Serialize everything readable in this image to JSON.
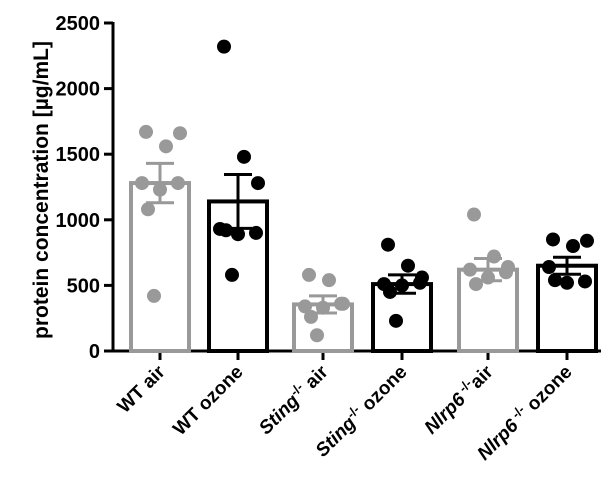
{
  "chart_data": {
    "type": "bar",
    "ylabel": "protein concentration  [µg/mL]",
    "ylim": [
      0,
      2500
    ],
    "yticks": [
      0,
      500,
      1000,
      1500,
      2000,
      2500
    ],
    "categories": [
      {
        "parts": [
          {
            "t": "WT air",
            "i": false
          }
        ]
      },
      {
        "parts": [
          {
            "t": "WT ozone",
            "i": false
          }
        ]
      },
      {
        "parts": [
          {
            "t": "Sting",
            "i": true
          },
          {
            "t": "-/-",
            "i": false,
            "sup": true
          },
          {
            "t": " air",
            "i": false
          }
        ]
      },
      {
        "parts": [
          {
            "t": "Sting",
            "i": true
          },
          {
            "t": "-/-",
            "i": false,
            "sup": true
          },
          {
            "t": " ozone",
            "i": false
          }
        ]
      },
      {
        "parts": [
          {
            "t": "Nlrp6",
            "i": true
          },
          {
            "t": " -/-",
            "i": false,
            "sup": true
          },
          {
            "t": "air",
            "i": false
          }
        ]
      },
      {
        "parts": [
          {
            "t": "Nlrp6",
            "i": true
          },
          {
            "t": " -/-",
            "i": false,
            "sup": true
          },
          {
            "t": " ozone",
            "i": false
          }
        ]
      }
    ],
    "series": [
      {
        "category": "WT air",
        "color": "#999999",
        "mean": 1280,
        "sem": 150,
        "points": [
          1670,
          1560,
          1660,
          1280,
          1280,
          1230,
          1080,
          420
        ]
      },
      {
        "category": "WT ozone",
        "color": "#000000",
        "mean": 1140,
        "sem": 205,
        "points": [
          2320,
          1480,
          1280,
          930,
          900,
          890,
          920,
          580
        ]
      },
      {
        "category": "Sting-/- air",
        "color": "#999999",
        "mean": 355,
        "sem": 65,
        "points": [
          580,
          540,
          360,
          340,
          360,
          330,
          260,
          120
        ]
      },
      {
        "category": "Sting-/- ozone",
        "color": "#000000",
        "mean": 510,
        "sem": 70,
        "points": [
          810,
          650,
          560,
          510,
          520,
          500,
          450,
          230
        ]
      },
      {
        "category": "Nlrp6-/- air",
        "color": "#999999",
        "mean": 620,
        "sem": 85,
        "points": [
          1040,
          720,
          640,
          620,
          600,
          560,
          510
        ]
      },
      {
        "category": "Nlrp6-/- ozone",
        "color": "#000000",
        "mean": 650,
        "sem": 65,
        "points": [
          850,
          800,
          840,
          640,
          530,
          520,
          540
        ]
      }
    ]
  }
}
